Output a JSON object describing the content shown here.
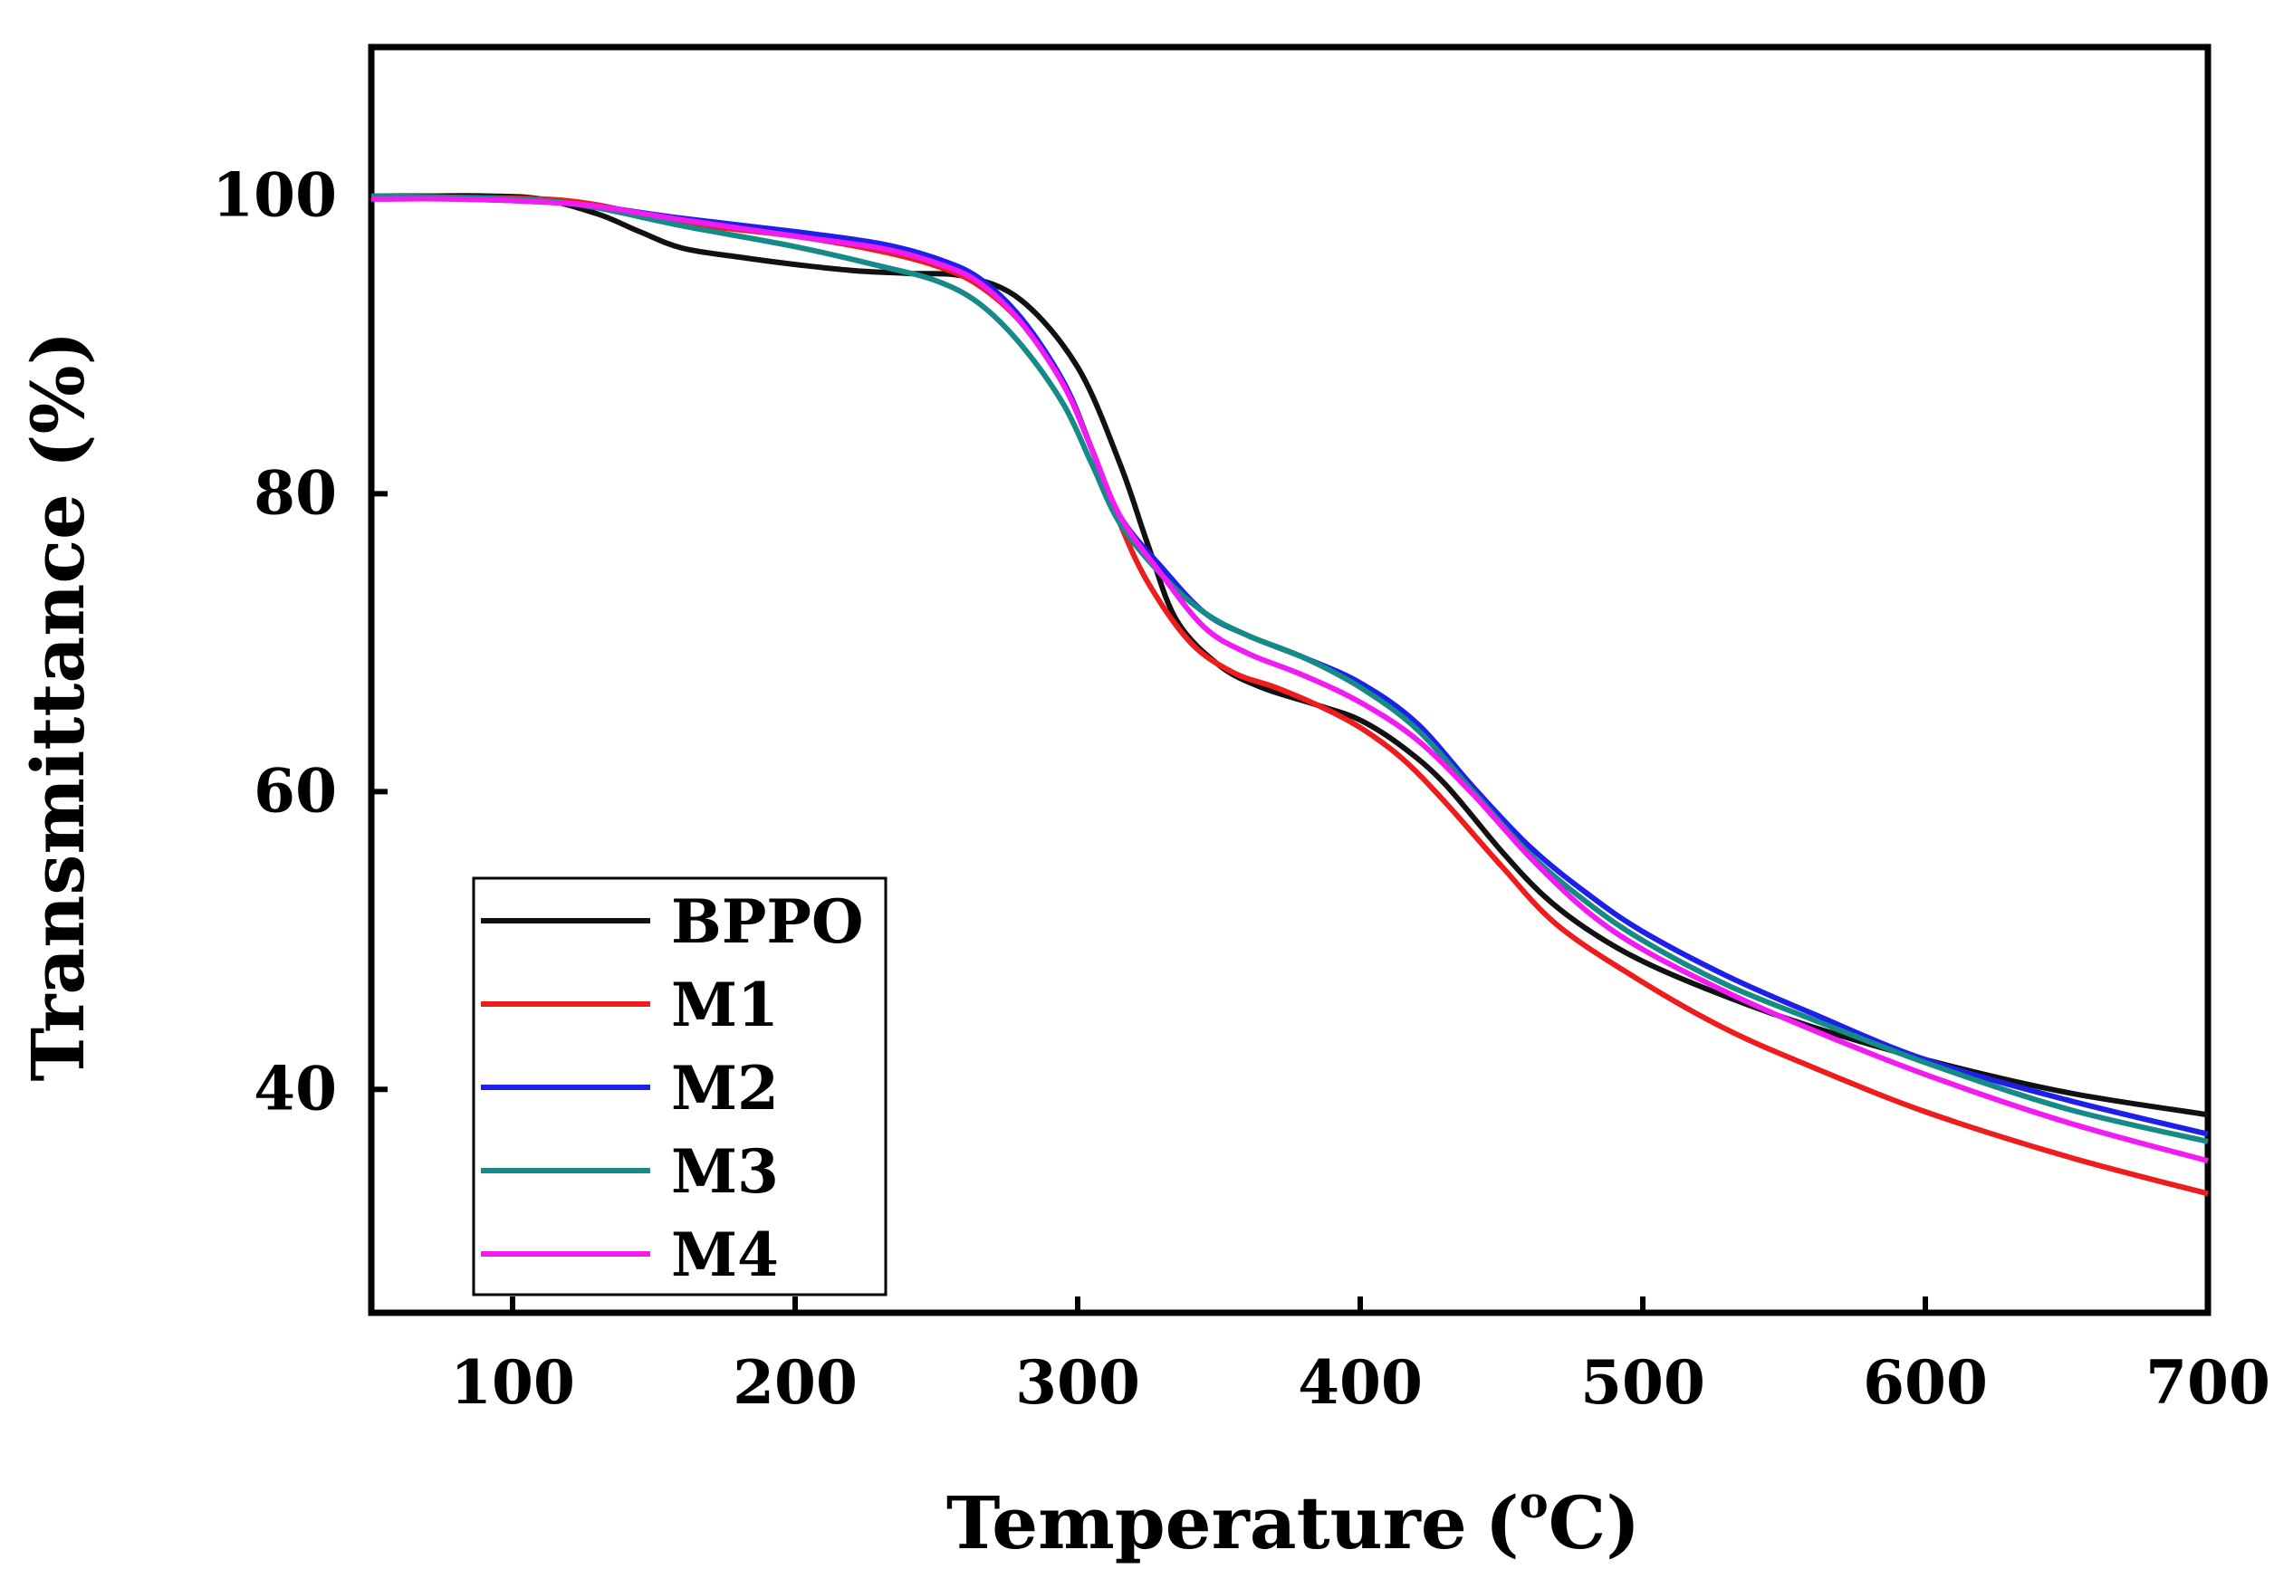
{
  "chart_data": {
    "type": "line",
    "title": "",
    "xlabel": "Temperature",
    "xlabel_unit_prefix": "(",
    "xlabel_unit_sup": "o",
    "xlabel_unit_suffix": "C)",
    "ylabel": "Transmittance (%)",
    "xlim": [
      50,
      700
    ],
    "ylim": [
      25,
      110
    ],
    "xticks": [
      100,
      200,
      300,
      400,
      500,
      600,
      700
    ],
    "yticks": [
      40,
      60,
      80,
      100
    ],
    "grid": false,
    "legend_position": "bottom-left",
    "series": [
      {
        "name": "BPPO",
        "color": "#111111",
        "points": [
          [
            50,
            100
          ],
          [
            70,
            100
          ],
          [
            90,
            100
          ],
          [
            110,
            99.8
          ],
          [
            130,
            98.8
          ],
          [
            145,
            97.6
          ],
          [
            160,
            96.5
          ],
          [
            180,
            95.9
          ],
          [
            200,
            95.4
          ],
          [
            220,
            95
          ],
          [
            240,
            94.8
          ],
          [
            260,
            94.6
          ],
          [
            280,
            93
          ],
          [
            300,
            88.5
          ],
          [
            315,
            82
          ],
          [
            325,
            76.5
          ],
          [
            335,
            71.5
          ],
          [
            350,
            68.5
          ],
          [
            365,
            67
          ],
          [
            385,
            65.8
          ],
          [
            400,
            64.8
          ],
          [
            415,
            63
          ],
          [
            430,
            60.5
          ],
          [
            450,
            56
          ],
          [
            465,
            53
          ],
          [
            480,
            50.8
          ],
          [
            500,
            48.6
          ],
          [
            530,
            46.2
          ],
          [
            560,
            44.2
          ],
          [
            600,
            42
          ],
          [
            650,
            39.8
          ],
          [
            700,
            38.3
          ]
        ]
      },
      {
        "name": "M1",
        "color": "#ee1c1c",
        "points": [
          [
            50,
            100
          ],
          [
            80,
            99.9
          ],
          [
            110,
            99.8
          ],
          [
            130,
            99.4
          ],
          [
            160,
            98.2
          ],
          [
            200,
            97.3
          ],
          [
            230,
            96.3
          ],
          [
            250,
            95.3
          ],
          [
            265,
            94
          ],
          [
            280,
            91.5
          ],
          [
            295,
            87.5
          ],
          [
            305,
            83
          ],
          [
            315,
            78
          ],
          [
            325,
            74
          ],
          [
            340,
            70
          ],
          [
            355,
            68
          ],
          [
            370,
            67
          ],
          [
            385,
            65.8
          ],
          [
            400,
            64.3
          ],
          [
            415,
            62.2
          ],
          [
            430,
            59.3
          ],
          [
            450,
            55
          ],
          [
            470,
            51
          ],
          [
            500,
            47.2
          ],
          [
            530,
            44
          ],
          [
            560,
            41.5
          ],
          [
            600,
            38.5
          ],
          [
            650,
            35.5
          ],
          [
            700,
            33
          ]
        ]
      },
      {
        "name": "M2",
        "color": "#1f1fea",
        "points": [
          [
            50,
            99.8
          ],
          [
            80,
            99.8
          ],
          [
            110,
            99.6
          ],
          [
            130,
            99.3
          ],
          [
            160,
            98.5
          ],
          [
            200,
            97.6
          ],
          [
            230,
            96.8
          ],
          [
            250,
            95.8
          ],
          [
            265,
            94.5
          ],
          [
            280,
            91.8
          ],
          [
            295,
            87.5
          ],
          [
            305,
            83
          ],
          [
            315,
            78.5
          ],
          [
            330,
            75
          ],
          [
            345,
            72
          ],
          [
            360,
            70.5
          ],
          [
            380,
            69
          ],
          [
            400,
            67.3
          ],
          [
            420,
            64.6
          ],
          [
            440,
            60.3
          ],
          [
            460,
            56.3
          ],
          [
            480,
            53.2
          ],
          [
            500,
            50.6
          ],
          [
            530,
            47.6
          ],
          [
            560,
            45.1
          ],
          [
            600,
            42
          ],
          [
            650,
            39.3
          ],
          [
            700,
            37
          ]
        ]
      },
      {
        "name": "M3",
        "color": "#168a86",
        "points": [
          [
            50,
            100
          ],
          [
            80,
            99.9
          ],
          [
            110,
            99.7
          ],
          [
            130,
            99.2
          ],
          [
            160,
            98
          ],
          [
            200,
            96.6
          ],
          [
            230,
            95.3
          ],
          [
            250,
            94.3
          ],
          [
            265,
            92.8
          ],
          [
            280,
            90
          ],
          [
            295,
            86
          ],
          [
            305,
            82
          ],
          [
            315,
            78
          ],
          [
            330,
            74.5
          ],
          [
            345,
            72
          ],
          [
            360,
            70.5
          ],
          [
            380,
            69
          ],
          [
            400,
            67
          ],
          [
            420,
            64.2
          ],
          [
            440,
            60
          ],
          [
            460,
            55.8
          ],
          [
            480,
            52.6
          ],
          [
            500,
            50
          ],
          [
            530,
            47
          ],
          [
            560,
            44.7
          ],
          [
            600,
            41.8
          ],
          [
            650,
            38.7
          ],
          [
            700,
            36.5
          ]
        ]
      },
      {
        "name": "M4",
        "color": "#f21cf2",
        "points": [
          [
            50,
            99.8
          ],
          [
            80,
            99.8
          ],
          [
            110,
            99.6
          ],
          [
            130,
            99.3
          ],
          [
            160,
            98.4
          ],
          [
            200,
            97.3
          ],
          [
            230,
            96.5
          ],
          [
            250,
            95.5
          ],
          [
            265,
            94.2
          ],
          [
            280,
            91.5
          ],
          [
            295,
            87.3
          ],
          [
            305,
            83
          ],
          [
            315,
            78.5
          ],
          [
            330,
            74.5
          ],
          [
            345,
            71
          ],
          [
            360,
            69.3
          ],
          [
            380,
            67.8
          ],
          [
            400,
            66
          ],
          [
            420,
            63.5
          ],
          [
            440,
            59.8
          ],
          [
            460,
            55.6
          ],
          [
            480,
            52
          ],
          [
            500,
            49.4
          ],
          [
            530,
            46.5
          ],
          [
            560,
            44
          ],
          [
            600,
            41
          ],
          [
            650,
            37.8
          ],
          [
            700,
            35.2
          ]
        ]
      }
    ]
  }
}
